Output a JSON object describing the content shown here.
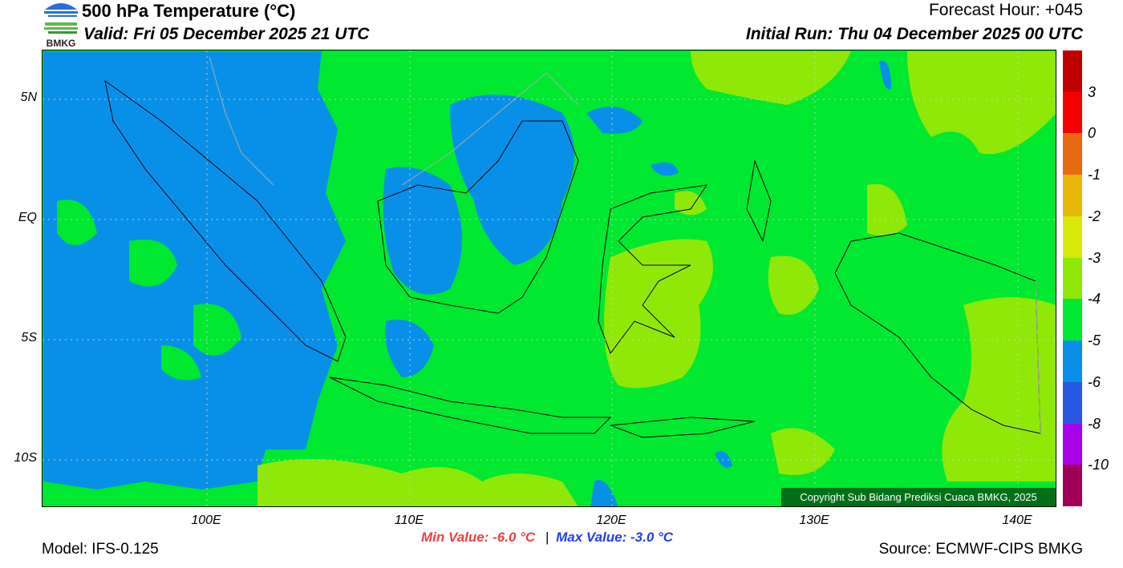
{
  "header": {
    "title": "500 hPa Temperature (°C)",
    "valid": "Valid: Fri 05 December 2025 21 UTC",
    "forecast_hour": "Forecast Hour: +045",
    "initial_run": "Initial Run: Thu 04 December 2025 00 UTC",
    "logo_text": "BMKG"
  },
  "axes": {
    "lat_ticks": [
      "5N",
      "EQ",
      "5S",
      "10S"
    ],
    "lon_ticks": [
      "100E",
      "110E",
      "120E",
      "130E",
      "140E"
    ]
  },
  "colorbar": {
    "colors": [
      "#c00000",
      "#f80000",
      "#e86a10",
      "#e8b808",
      "#d8e808",
      "#90e808",
      "#00e830",
      "#0890e8",
      "#2858e0",
      "#a800e8",
      "#a00058"
    ],
    "labels": [
      "3",
      "0",
      "-1",
      "-2",
      "-3",
      "-4",
      "-5",
      "-6",
      "-8",
      "-10"
    ]
  },
  "footer": {
    "copyright": "Copyright Sub Bidang Prediksi Cuaca BMKG, 2025",
    "min_value": "Min Value: -6.0 °C",
    "separator": "|",
    "max_value": "Max Value: -3.0 °C",
    "model": "Model: IFS-0.125",
    "source": "Source: ECMWF-CIPS BMKG",
    "min_color": "#f04040",
    "max_color": "#2040f0"
  }
}
